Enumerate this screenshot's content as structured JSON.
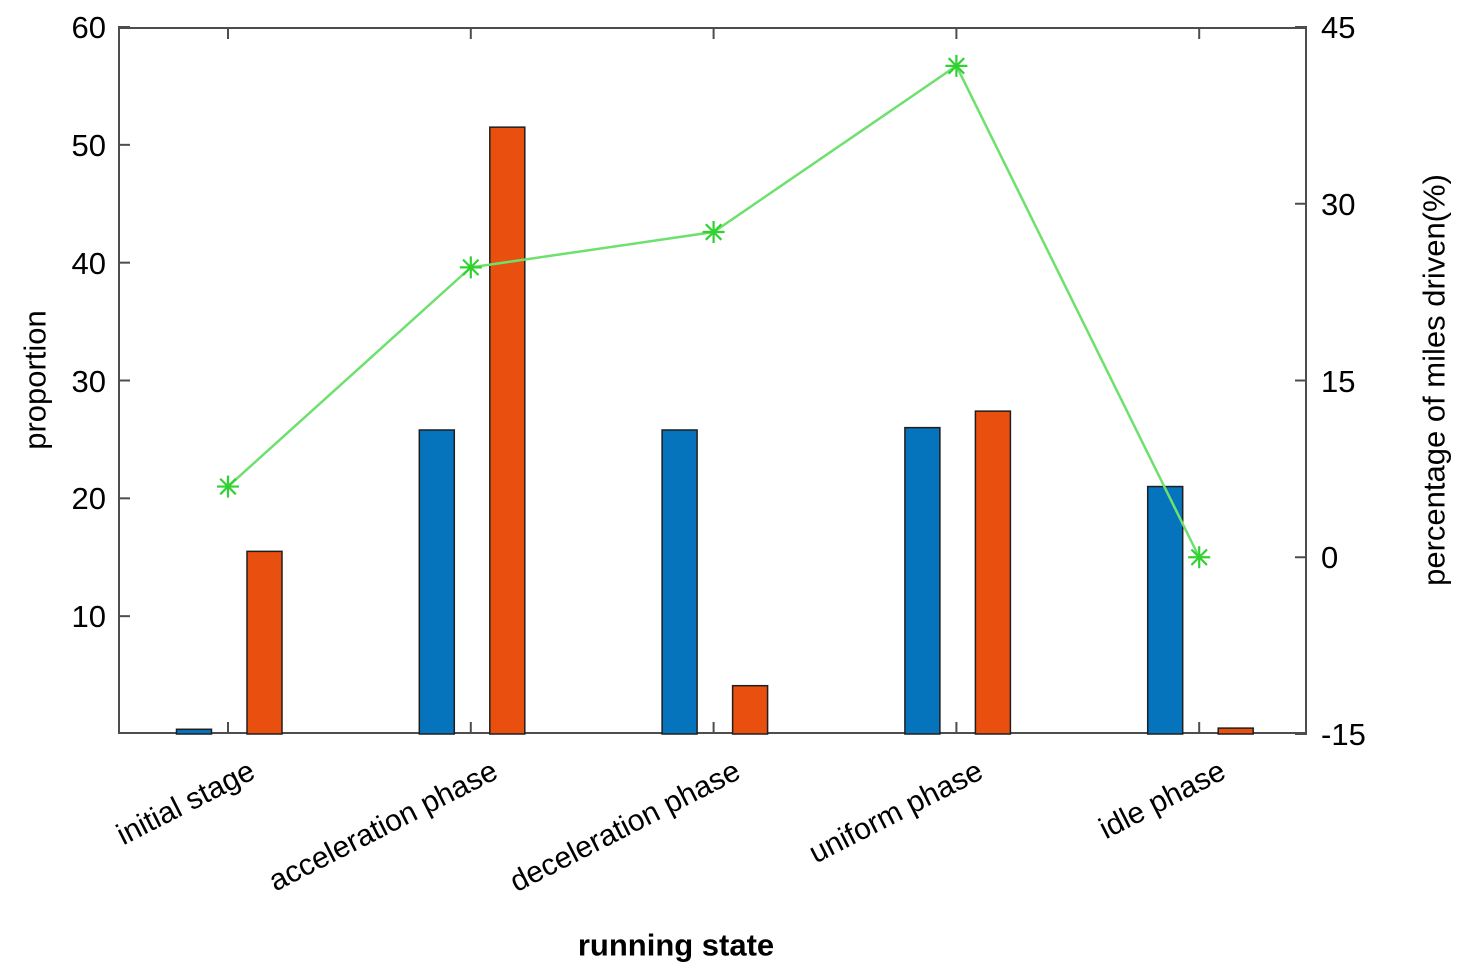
{
  "chart_data": {
    "type": "bar+line",
    "title": "",
    "xlabel": "running state",
    "categories": [
      "initial stage",
      "acceleration phase",
      "deceleration phase",
      "uniform phase",
      "idle phase"
    ],
    "left_axis": {
      "label": "proportion",
      "min": 0,
      "max": 60,
      "ticks": [
        10,
        20,
        30,
        40,
        50,
        60
      ]
    },
    "right_axis": {
      "label": "percentage of miles driven(%)",
      "min": -15,
      "max": 45,
      "ticks": [
        -15,
        0,
        15,
        30,
        45
      ]
    },
    "grid": false,
    "legend": null,
    "series": [
      {
        "name": "blue-bars",
        "type": "bar",
        "axis": "left",
        "color": "#0673bd",
        "edge_color": "#1f1f1f",
        "values": [
          0.4,
          25.8,
          25.8,
          26.0,
          21.0
        ]
      },
      {
        "name": "orange-bars",
        "type": "bar",
        "axis": "left",
        "color": "#e94f0e",
        "edge_color": "#1f1f1f",
        "values": [
          15.5,
          51.5,
          4.1,
          27.4,
          0.5
        ]
      },
      {
        "name": "green-line",
        "type": "line",
        "axis": "right",
        "color": "#6ee06e",
        "marker_color": "#30d130",
        "marker": "asterisk",
        "values": [
          6.0,
          24.6,
          27.6,
          41.7,
          0.0
        ]
      }
    ],
    "axis_color": "#4d4d4d",
    "text_color": "#000000"
  }
}
